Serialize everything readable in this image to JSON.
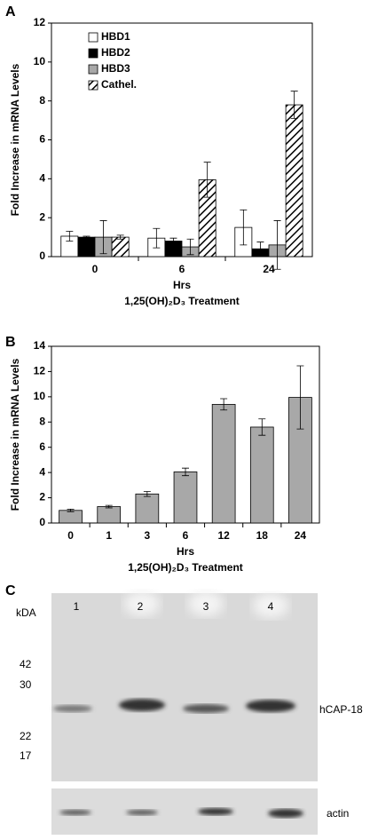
{
  "chart_data": [
    {
      "type": "bar",
      "panel": "A",
      "ylabel": "Fold Increase in mRNA Levels",
      "xlabel": "Hrs",
      "xlabel2": "1,25(OH)₂D₃ Treatment",
      "categories": [
        "0",
        "6",
        "24"
      ],
      "series": [
        {
          "name": "HBD1",
          "color": "#ffffff",
          "values": [
            1.05,
            0.95,
            1.5
          ],
          "errors": [
            0.25,
            0.5,
            0.9
          ]
        },
        {
          "name": "HBD2",
          "color": "#000000",
          "values": [
            1.0,
            0.8,
            0.4
          ],
          "errors": [
            0.05,
            0.15,
            0.35
          ]
        },
        {
          "name": "HBD3",
          "color": "#a8a8a8",
          "values": [
            1.0,
            0.5,
            0.6
          ],
          "errors": [
            0.85,
            0.4,
            1.25
          ]
        },
        {
          "name": "Cathel.",
          "color": "#ffffff",
          "hatch": true,
          "values": [
            1.0,
            3.95,
            7.8
          ],
          "errors": [
            0.1,
            0.9,
            0.7
          ]
        }
      ],
      "ylim": [
        0,
        12
      ],
      "yticks": [
        0,
        2,
        4,
        6,
        8,
        10,
        12
      ],
      "legend": "upper left"
    },
    {
      "type": "bar",
      "panel": "B",
      "ylabel": "Fold Increase in mRNA Levels",
      "xlabel": "Hrs",
      "xlabel2": "1,25(OH)₂D₃ Treatment",
      "categories": [
        "0",
        "1",
        "3",
        "6",
        "12",
        "18",
        "24"
      ],
      "series": [
        {
          "color": "#a8a8a8",
          "values": [
            1.0,
            1.3,
            2.3,
            4.05,
            9.4,
            7.6,
            9.95
          ],
          "errors": [
            0.1,
            0.1,
            0.2,
            0.3,
            0.45,
            0.65,
            2.5
          ]
        }
      ],
      "ylim": [
        0,
        14
      ],
      "yticks": [
        0,
        2,
        4,
        6,
        8,
        10,
        12,
        14
      ]
    }
  ],
  "blot": {
    "panel": "C",
    "unit": "kDA",
    "lanes": [
      "1",
      "2",
      "3",
      "4"
    ],
    "markers": [
      "42",
      "30",
      "22",
      "17"
    ],
    "bands": [
      "hCAP-18",
      "actin"
    ]
  }
}
